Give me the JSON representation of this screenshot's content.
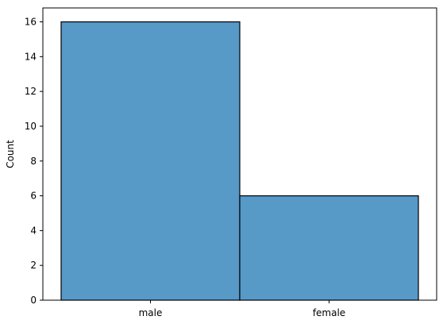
{
  "chart_data": {
    "type": "bar",
    "categories": [
      "male",
      "female"
    ],
    "values": [
      16,
      6
    ],
    "title": "",
    "xlabel": "",
    "ylabel": "Count",
    "ylim": [
      0,
      16.8
    ],
    "yticks": [
      0,
      2,
      4,
      6,
      8,
      10,
      12,
      14,
      16
    ],
    "grid": false,
    "bar_color": "#5799c7",
    "bar_edge_color": "#000000"
  }
}
